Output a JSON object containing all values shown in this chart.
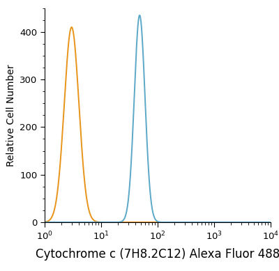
{
  "title": "",
  "xlabel": "Cytochrome c (7H8.2C12) Alexa Fluor 488",
  "ylabel": "Relative Cell Number",
  "xlim": [
    1.0,
    10000.0
  ],
  "ylim": [
    0,
    450
  ],
  "yticks": [
    0,
    100,
    200,
    300,
    400
  ],
  "orange_color": "#E8941A",
  "blue_color": "#5BA8C8",
  "orange_peak_x": 3.0,
  "orange_peak_y": 410,
  "orange_sigma": 0.13,
  "blue_peak_x": 48.0,
  "blue_peak_y": 435,
  "blue_sigma": 0.095,
  "background_color": "#ffffff",
  "line_width": 1.4,
  "xlabel_fontsize": 12,
  "ylabel_fontsize": 10,
  "tick_labelsize": 9.5
}
